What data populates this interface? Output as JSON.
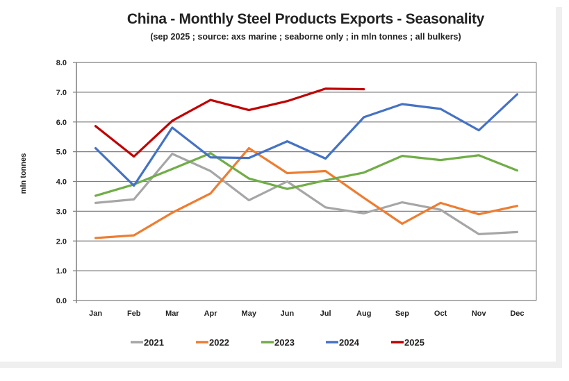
{
  "chart_data": {
    "type": "line",
    "title": "China - Monthly Steel Products Exports - Seasonality",
    "subtitle": "(sep 2025 ; source: axs marine ; seaborne only ; in mln tonnes ; all bulkers)",
    "xlabel": "",
    "ylabel": "mln tonnes",
    "ylim": [
      0,
      8
    ],
    "yticks": [
      "0.0",
      "1.0",
      "2.0",
      "3.0",
      "4.0",
      "5.0",
      "6.0",
      "7.0",
      "8.0"
    ],
    "grid": true,
    "legend_position": "bottom",
    "categories": [
      "Jan",
      "Feb",
      "Mar",
      "Apr",
      "May",
      "Jun",
      "Jul",
      "Aug",
      "Sep",
      "Oct",
      "Nov",
      "Dec"
    ],
    "series": [
      {
        "name": "2021",
        "color": "#a6a6a6",
        "values": [
          3.28,
          3.4,
          4.93,
          4.35,
          3.37,
          4.0,
          3.13,
          2.93,
          3.3,
          3.05,
          2.23,
          2.3
        ]
      },
      {
        "name": "2022",
        "color": "#ed7d31",
        "values": [
          2.1,
          2.19,
          2.95,
          3.6,
          5.12,
          4.28,
          4.35,
          3.45,
          2.58,
          3.28,
          2.9,
          3.18
        ]
      },
      {
        "name": "2023",
        "color": "#70ad47",
        "values": [
          3.52,
          3.9,
          4.42,
          4.95,
          4.1,
          3.75,
          4.04,
          4.3,
          4.86,
          4.72,
          4.88,
          4.37
        ]
      },
      {
        "name": "2024",
        "color": "#4472c4",
        "values": [
          5.12,
          3.86,
          5.81,
          4.81,
          4.79,
          5.35,
          4.77,
          6.16,
          6.6,
          6.44,
          5.72,
          6.93
        ]
      },
      {
        "name": "2025",
        "color": "#c00000",
        "values": [
          5.86,
          4.84,
          6.04,
          6.74,
          6.4,
          6.7,
          7.12,
          7.1,
          null,
          null,
          null,
          null
        ]
      }
    ]
  }
}
